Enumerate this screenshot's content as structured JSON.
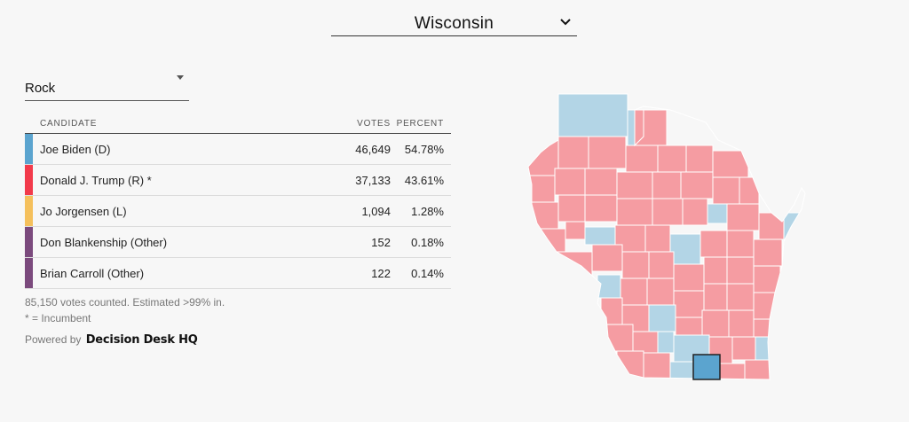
{
  "state_selector": {
    "value": "Wisconsin"
  },
  "county_selector": {
    "value": "Rock"
  },
  "table": {
    "headers": {
      "candidate": "CANDIDATE",
      "votes": "VOTES",
      "percent": "PERCENT"
    },
    "rows": [
      {
        "name": "Joe Biden (D)",
        "votes": "46,649",
        "percent": "54.78%",
        "color": "#5ba4cf"
      },
      {
        "name": "Donald J. Trump (R) *",
        "votes": "37,133",
        "percent": "43.61%",
        "color": "#f23a4b"
      },
      {
        "name": "Jo Jorgensen (L)",
        "votes": "1,094",
        "percent": "1.28%",
        "color": "#f5c05c"
      },
      {
        "name": "Don Blankenship (Other)",
        "votes": "152",
        "percent": "0.18%",
        "color": "#7b4a7d"
      },
      {
        "name": "Brian Carroll (Other)",
        "votes": "122",
        "percent": "0.14%",
        "color": "#7b4a7d"
      }
    ]
  },
  "footer": {
    "counted": "85,150 votes counted. Estimated >99% in.",
    "incumbent_note": "* = Incumbent",
    "powered_by": "Powered by",
    "brand_name": "Decision Desk HQ"
  },
  "map": {
    "colors": {
      "republican": "#f59ca2",
      "democrat": "#b3d5e6",
      "selected": "#5ba4cf",
      "border": "#ffffff"
    }
  }
}
